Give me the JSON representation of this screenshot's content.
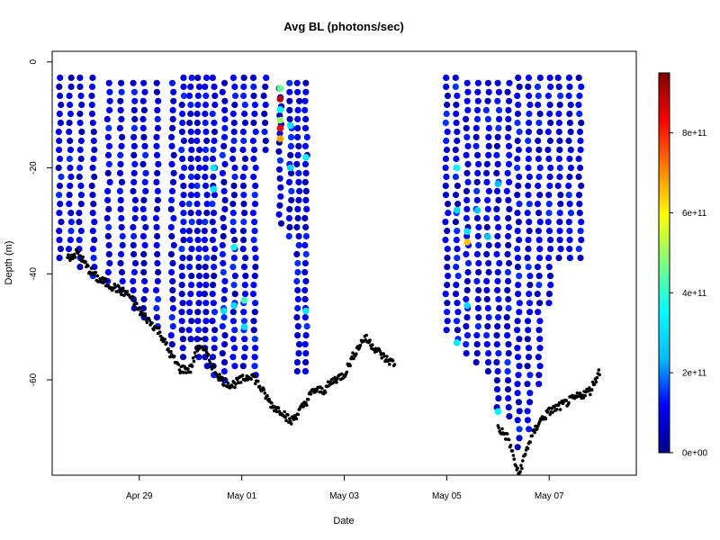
{
  "chart_data": {
    "type": "scatter",
    "title": "Avg BL (photons/sec)",
    "xlabel": "Date",
    "ylabel": "Depth (m)",
    "x_ticks": [
      "Apr 29",
      "May 01",
      "May 03",
      "May 05",
      "May 07"
    ],
    "x_tick_days": [
      29,
      31,
      33,
      35,
      37
    ],
    "xlim_days": [
      27.3,
      38.7
    ],
    "y_ticks": [
      0,
      -20,
      -40,
      -60
    ],
    "y_tick_labels": [
      "0",
      "-20",
      "-40",
      "-60"
    ],
    "ylim": [
      -78,
      2
    ],
    "colorbar": {
      "min": 0,
      "max": 950000000000.0,
      "tick_values": [
        0,
        200000000000.0,
        400000000000.0,
        600000000000.0,
        800000000000.0
      ],
      "tick_labels": [
        "0e+00",
        "2e+11",
        "4e+11",
        "6e+11",
        "8e+11"
      ],
      "colors": [
        "#00008b",
        "#0000ff",
        "#00bfff",
        "#00ffff",
        "#7fff7f",
        "#ffff00",
        "#ff7f00",
        "#ff0000",
        "#7f0000"
      ]
    },
    "bottom_series_color": "#000000",
    "bottom_depth": [
      [
        27.6,
        -37
      ],
      [
        27.8,
        -36
      ],
      [
        28.0,
        -39
      ],
      [
        28.2,
        -41
      ],
      [
        28.4,
        -42
      ],
      [
        28.6,
        -43
      ],
      [
        28.8,
        -44
      ],
      [
        29.0,
        -47
      ],
      [
        29.2,
        -49
      ],
      [
        29.4,
        -51
      ],
      [
        29.6,
        -55
      ],
      [
        29.8,
        -58
      ],
      [
        30.0,
        -58
      ],
      [
        30.1,
        -55
      ],
      [
        30.2,
        -53
      ],
      [
        30.4,
        -57
      ],
      [
        30.6,
        -60
      ],
      [
        30.8,
        -61
      ],
      [
        31.0,
        -60
      ],
      [
        31.2,
        -59
      ],
      [
        31.4,
        -62
      ],
      [
        31.6,
        -65
      ],
      [
        31.8,
        -66
      ],
      [
        31.95,
        -68
      ],
      [
        32.2,
        -65
      ],
      [
        32.4,
        -62
      ],
      [
        32.6,
        -62
      ],
      [
        32.8,
        -60
      ],
      [
        33.0,
        -59
      ],
      [
        33.2,
        -55
      ],
      [
        33.4,
        -52
      ],
      [
        33.6,
        -54
      ],
      [
        33.8,
        -56
      ],
      [
        34.0,
        -57
      ],
      [
        36.0,
        -69
      ],
      [
        36.2,
        -71
      ],
      [
        36.4,
        -78
      ],
      [
        36.6,
        -72
      ],
      [
        36.8,
        -68
      ],
      [
        37.0,
        -66
      ],
      [
        37.2,
        -65
      ],
      [
        37.4,
        -64
      ],
      [
        37.6,
        -63
      ],
      [
        37.8,
        -62
      ],
      [
        38.0,
        -58
      ]
    ],
    "profiles": [
      {
        "x": 27.45,
        "top": -3,
        "bottom": -38
      },
      {
        "x": 27.65,
        "top": -3,
        "bottom": -36
      },
      {
        "x": 27.85,
        "top": -3,
        "bottom": -40
      },
      {
        "x": 28.1,
        "top": -3,
        "bottom": -41
      },
      {
        "x": 28.4,
        "top": -4,
        "bottom": -42
      },
      {
        "x": 28.65,
        "top": -4,
        "bottom": -44
      },
      {
        "x": 28.9,
        "top": -4,
        "bottom": -47
      },
      {
        "x": 29.1,
        "top": -4,
        "bottom": -49
      },
      {
        "x": 29.35,
        "top": -4,
        "bottom": -51
      },
      {
        "x": 29.65,
        "top": -4,
        "bottom": -54
      },
      {
        "x": 29.85,
        "top": -3,
        "bottom": -56
      },
      {
        "x": 30.0,
        "top": -3,
        "bottom": -53
      },
      {
        "x": 30.15,
        "top": -3,
        "bottom": -57
      },
      {
        "x": 30.3,
        "top": -3,
        "bottom": -58
      },
      {
        "x": 30.45,
        "top": -3,
        "bottom": -60
      },
      {
        "x": 30.65,
        "top": -4,
        "bottom": -61
      },
      {
        "x": 30.85,
        "top": -3,
        "bottom": -58
      },
      {
        "x": 31.05,
        "top": -3,
        "bottom": -59
      },
      {
        "x": 31.25,
        "top": -3,
        "bottom": -60
      },
      {
        "x": 31.45,
        "top": -3,
        "bottom": -17
      },
      {
        "x": 31.75,
        "top": -5,
        "bottom": -32
      },
      {
        "x": 31.95,
        "top": -4,
        "bottom": -34
      },
      {
        "x": 32.1,
        "top": -4,
        "bottom": -60
      },
      {
        "x": 32.25,
        "top": -4,
        "bottom": -59
      },
      {
        "x": 35.0,
        "top": -3,
        "bottom": -52
      },
      {
        "x": 35.2,
        "top": -3,
        "bottom": -53
      },
      {
        "x": 35.4,
        "top": -4,
        "bottom": -56
      },
      {
        "x": 35.6,
        "top": -4,
        "bottom": -58
      },
      {
        "x": 35.8,
        "top": -4,
        "bottom": -60
      },
      {
        "x": 36.0,
        "top": -4,
        "bottom": -66
      },
      {
        "x": 36.2,
        "top": -4,
        "bottom": -68
      },
      {
        "x": 36.4,
        "top": -3,
        "bottom": -73
      },
      {
        "x": 36.6,
        "top": -3,
        "bottom": -70
      },
      {
        "x": 36.8,
        "top": -3,
        "bottom": -62
      },
      {
        "x": 37.0,
        "top": -3,
        "bottom": -47
      },
      {
        "x": 37.2,
        "top": -3,
        "bottom": -37
      },
      {
        "x": 37.4,
        "top": -3,
        "bottom": -38
      },
      {
        "x": 37.6,
        "top": -3,
        "bottom": -38
      }
    ],
    "highlights": [
      {
        "x": 31.75,
        "y": -5,
        "value": 450000000000.0
      },
      {
        "x": 31.75,
        "y": -7,
        "value": 900000000000.0
      },
      {
        "x": 31.75,
        "y": -9,
        "value": 350000000000.0
      },
      {
        "x": 31.75,
        "y": -11,
        "value": 500000000000.0
      },
      {
        "x": 31.75,
        "y": -12.5,
        "value": 850000000000.0
      },
      {
        "x": 31.75,
        "y": -14.5,
        "value": 680000000000.0
      },
      {
        "x": 31.95,
        "y": -12,
        "value": 300000000000.0
      },
      {
        "x": 31.95,
        "y": -20,
        "value": 280000000000.0
      },
      {
        "x": 32.25,
        "y": -18,
        "value": 350000000000.0
      },
      {
        "x": 30.45,
        "y": -20,
        "value": 320000000000.0
      },
      {
        "x": 30.45,
        "y": -24,
        "value": 300000000000.0
      },
      {
        "x": 30.65,
        "y": -47,
        "value": 300000000000.0
      },
      {
        "x": 30.85,
        "y": -35,
        "value": 340000000000.0
      },
      {
        "x": 30.85,
        "y": -46,
        "value": 280000000000.0
      },
      {
        "x": 31.05,
        "y": -45,
        "value": 420000000000.0
      },
      {
        "x": 31.05,
        "y": -50,
        "value": 300000000000.0
      },
      {
        "x": 32.25,
        "y": -47,
        "value": 320000000000.0
      },
      {
        "x": 35.2,
        "y": -20,
        "value": 350000000000.0
      },
      {
        "x": 35.2,
        "y": -28,
        "value": 280000000000.0
      },
      {
        "x": 35.4,
        "y": -34,
        "value": 650000000000.0
      },
      {
        "x": 35.4,
        "y": -32,
        "value": 300000000000.0
      },
      {
        "x": 35.2,
        "y": -53,
        "value": 320000000000.0
      },
      {
        "x": 35.4,
        "y": -46,
        "value": 280000000000.0
      },
      {
        "x": 35.6,
        "y": -28,
        "value": 260000000000.0
      },
      {
        "x": 35.8,
        "y": -33,
        "value": 260000000000.0
      },
      {
        "x": 36.0,
        "y": -23,
        "value": 240000000000.0
      },
      {
        "x": 36.0,
        "y": -66,
        "value": 340000000000.0
      }
    ]
  }
}
